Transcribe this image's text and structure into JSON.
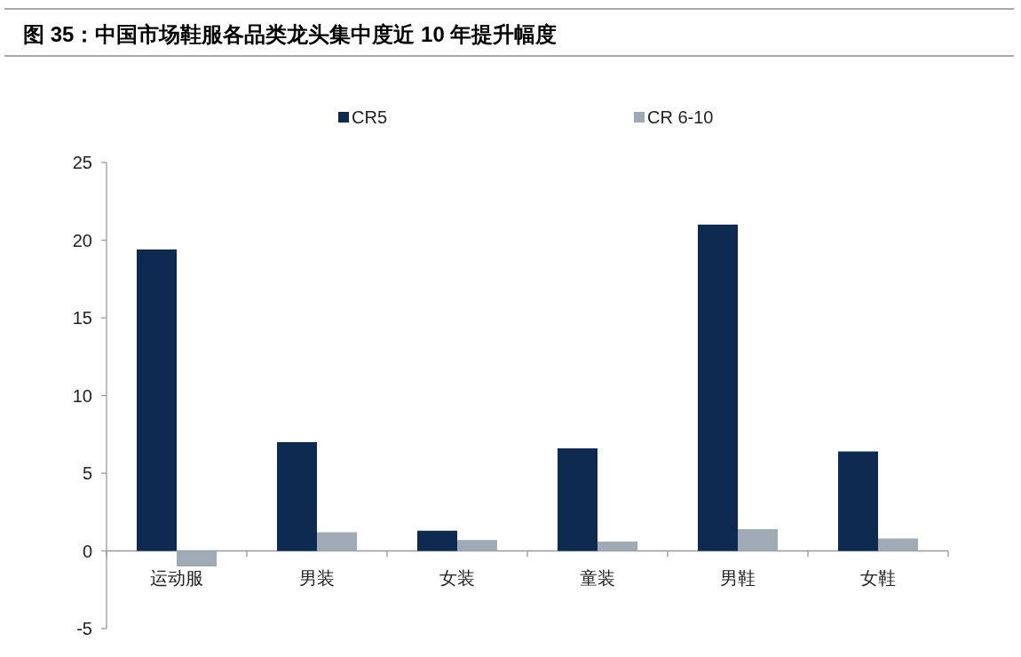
{
  "chart_data": {
    "type": "bar",
    "title": "图 35：中国市场鞋服各品类龙头集中度近 10 年提升幅度",
    "categories": [
      "运动服",
      "男装",
      "女装",
      "童装",
      "男鞋",
      "女鞋"
    ],
    "series": [
      {
        "name": "CR5",
        "color": "#0d2a50",
        "values": [
          19.4,
          7.0,
          1.3,
          6.6,
          21.0,
          6.4
        ]
      },
      {
        "name": "CR 6-10",
        "color": "#a0aab4",
        "values": [
          -1.0,
          1.2,
          0.7,
          0.6,
          1.4,
          0.8
        ]
      }
    ],
    "ylim": [
      -5,
      25
    ],
    "yticks": [
      -5,
      0,
      5,
      10,
      15,
      20,
      25
    ],
    "legend": "top"
  }
}
